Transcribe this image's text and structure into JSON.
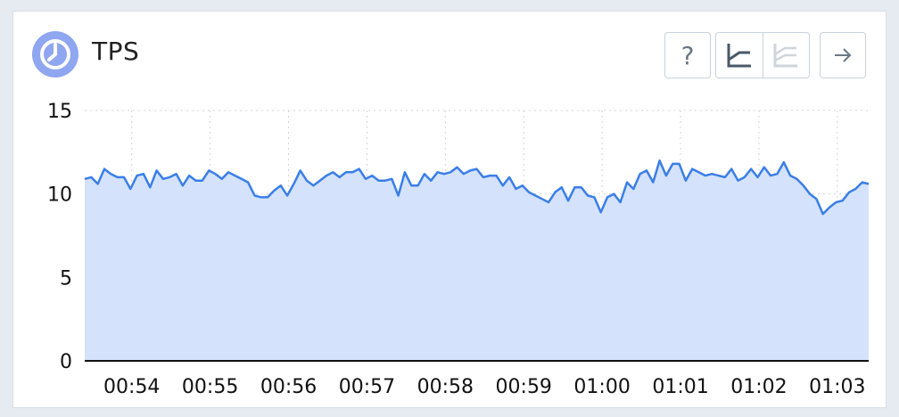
{
  "widget": {
    "title": "TPS",
    "help_label": "?",
    "accent_color": "#8fa6f0",
    "logo_icon": "clock-icon"
  },
  "toolbar": {
    "help_icon": "question-icon",
    "linear_scale_icon": "linear-chart-icon",
    "stacked_scale_icon": "multi-line-chart-icon",
    "next_icon": "arrow-right-icon"
  },
  "chart_data": {
    "type": "area",
    "title": "TPS",
    "xlabel": "",
    "ylabel": "",
    "ylim": [
      0,
      15
    ],
    "yticks": [
      0,
      5,
      10,
      15
    ],
    "xtick_labels": [
      "00:54",
      "00:55",
      "00:56",
      "00:57",
      "00:58",
      "00:59",
      "01:00",
      "01:01",
      "01:02",
      "01:03"
    ],
    "x_start_minute_offset": -0.6,
    "x_end_minute_offset": 9.4,
    "grid": true,
    "line_color": "#3a7ee8",
    "fill_color": "#d4e3fb",
    "series": [
      {
        "values": [
          10.9,
          11.0,
          10.6,
          11.5,
          11.2,
          11.0,
          11.0,
          10.3,
          11.1,
          11.2,
          10.4,
          11.4,
          10.9,
          11.0,
          11.2,
          10.5,
          11.1,
          10.8,
          10.8,
          11.4,
          11.2,
          10.9,
          11.3,
          11.1,
          10.9,
          10.7,
          9.9,
          9.8,
          9.8,
          10.2,
          10.5,
          9.9,
          10.6,
          11.4,
          10.8,
          10.5,
          10.8,
          11.1,
          11.3,
          11.0,
          11.3,
          11.3,
          11.5,
          10.9,
          11.1,
          10.8,
          10.8,
          10.9,
          9.9,
          11.3,
          10.5,
          10.5,
          11.2,
          10.8,
          11.3,
          11.2,
          11.3,
          11.6,
          11.2,
          11.4,
          11.5,
          11.0,
          11.1,
          11.1,
          10.5,
          11.0,
          10.3,
          10.5,
          10.1,
          9.9,
          9.7,
          9.5,
          10.1,
          10.4,
          9.6,
          10.4,
          10.4,
          9.9,
          9.8,
          8.9,
          9.8,
          10.0,
          9.5,
          10.7,
          10.3,
          11.2,
          11.4,
          10.7,
          12.0,
          11.1,
          11.8,
          11.8,
          10.8,
          11.5,
          11.3,
          11.1,
          11.2,
          11.1,
          11.0,
          11.5,
          10.8,
          11.0,
          11.5,
          11.0,
          11.6,
          11.1,
          11.2,
          11.9,
          11.1,
          10.9,
          10.5,
          10.0,
          9.7,
          8.8,
          9.2,
          9.5,
          9.6,
          10.1,
          10.3,
          10.7,
          10.6
        ]
      }
    ]
  }
}
